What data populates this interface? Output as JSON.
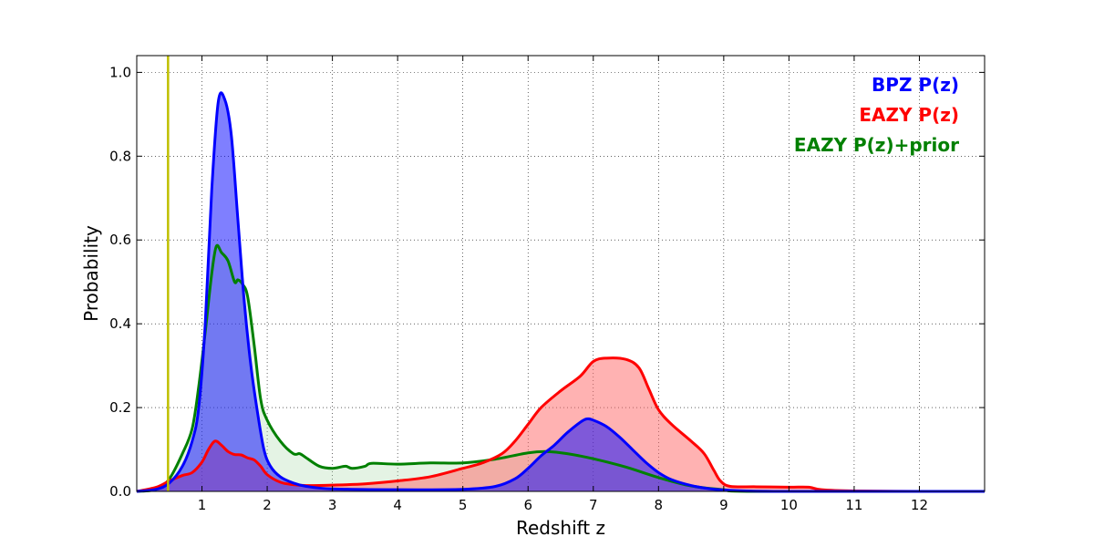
{
  "chart_data": {
    "type": "area",
    "title": "",
    "xlabel": "Redshift z",
    "ylabel": "Probability",
    "xlim": [
      0,
      13
    ],
    "ylim": [
      0,
      1.04
    ],
    "xticks": [
      1,
      2,
      3,
      4,
      5,
      6,
      7,
      8,
      9,
      10,
      11,
      12
    ],
    "yticks": [
      0.0,
      0.2,
      0.4,
      0.6,
      0.8,
      1.0
    ],
    "xtick_labels": [
      "1",
      "2",
      "3",
      "4",
      "5",
      "6",
      "7",
      "8",
      "9",
      "10",
      "11",
      "12"
    ],
    "ytick_labels": [
      "0.0",
      "0.2",
      "0.4",
      "0.6",
      "0.8",
      "1.0"
    ],
    "grid": true,
    "legend_position": "top-right",
    "vertical_line": {
      "x": 0.48,
      "color": "#bfbf00"
    },
    "series": [
      {
        "name": "BPZ P(z)",
        "color": "#0000ff",
        "fill": "#0000ff",
        "fill_opacity": 0.5,
        "x": [
          0,
          0.3,
          0.5,
          0.7,
          0.85,
          0.95,
          1.05,
          1.15,
          1.25,
          1.35,
          1.45,
          1.55,
          1.65,
          1.75,
          1.85,
          1.95,
          2.05,
          2.2,
          2.4,
          2.6,
          3.0,
          4.0,
          5.0,
          5.5,
          5.8,
          6.0,
          6.2,
          6.4,
          6.6,
          6.8,
          6.9,
          7.0,
          7.2,
          7.4,
          7.6,
          7.8,
          8.0,
          8.2,
          8.5,
          8.8,
          9.2,
          10,
          13
        ],
        "y": [
          0,
          0.005,
          0.02,
          0.06,
          0.12,
          0.2,
          0.4,
          0.72,
          0.93,
          0.935,
          0.85,
          0.65,
          0.45,
          0.3,
          0.19,
          0.1,
          0.06,
          0.035,
          0.02,
          0.012,
          0.006,
          0.004,
          0.005,
          0.012,
          0.03,
          0.055,
          0.085,
          0.11,
          0.14,
          0.165,
          0.173,
          0.17,
          0.155,
          0.13,
          0.1,
          0.07,
          0.045,
          0.028,
          0.014,
          0.006,
          0.002,
          0,
          0
        ]
      },
      {
        "name": "EAZY P(z)",
        "color": "#ff0000",
        "fill": "#ff6666",
        "fill_opacity": 0.5,
        "x": [
          0,
          0.3,
          0.5,
          0.7,
          0.85,
          1.0,
          1.1,
          1.2,
          1.3,
          1.4,
          1.5,
          1.6,
          1.7,
          1.8,
          1.9,
          2.0,
          2.2,
          2.4,
          2.6,
          3.0,
          3.5,
          4.0,
          4.5,
          5.0,
          5.3,
          5.6,
          5.8,
          6.0,
          6.2,
          6.5,
          6.8,
          7.0,
          7.2,
          7.5,
          7.7,
          7.85,
          8.0,
          8.2,
          8.5,
          8.7,
          8.85,
          8.95,
          9.1,
          9.5,
          10.0,
          10.3,
          10.5,
          11.0,
          12.0,
          13.0
        ],
        "y": [
          0,
          0.01,
          0.025,
          0.038,
          0.045,
          0.07,
          0.1,
          0.12,
          0.11,
          0.095,
          0.088,
          0.087,
          0.08,
          0.075,
          0.06,
          0.04,
          0.022,
          0.016,
          0.014,
          0.015,
          0.018,
          0.025,
          0.035,
          0.055,
          0.068,
          0.09,
          0.12,
          0.16,
          0.2,
          0.24,
          0.275,
          0.31,
          0.318,
          0.315,
          0.295,
          0.245,
          0.195,
          0.16,
          0.12,
          0.09,
          0.05,
          0.025,
          0.012,
          0.011,
          0.01,
          0.01,
          0.004,
          0.001,
          0,
          0
        ]
      },
      {
        "name": "EAZY P(z)+prior",
        "color": "#008000",
        "fill": "#a6d8a6",
        "fill_opacity": 0.3,
        "x": [
          0,
          0.3,
          0.5,
          0.7,
          0.85,
          0.95,
          1.05,
          1.15,
          1.22,
          1.3,
          1.4,
          1.5,
          1.55,
          1.62,
          1.7,
          1.8,
          1.9,
          2.0,
          2.2,
          2.4,
          2.5,
          2.6,
          2.8,
          3.0,
          3.2,
          3.3,
          3.5,
          3.6,
          4.0,
          4.5,
          5.0,
          5.5,
          6.0,
          6.3,
          6.6,
          7.0,
          7.5,
          8.0,
          8.5,
          9.0,
          9.5,
          13.0
        ],
        "y": [
          0,
          0.005,
          0.03,
          0.09,
          0.15,
          0.25,
          0.38,
          0.52,
          0.585,
          0.57,
          0.55,
          0.5,
          0.505,
          0.495,
          0.465,
          0.35,
          0.22,
          0.17,
          0.12,
          0.09,
          0.09,
          0.08,
          0.06,
          0.055,
          0.06,
          0.055,
          0.06,
          0.067,
          0.065,
          0.068,
          0.068,
          0.077,
          0.092,
          0.095,
          0.09,
          0.078,
          0.058,
          0.033,
          0.013,
          0.004,
          0,
          0
        ]
      }
    ]
  }
}
